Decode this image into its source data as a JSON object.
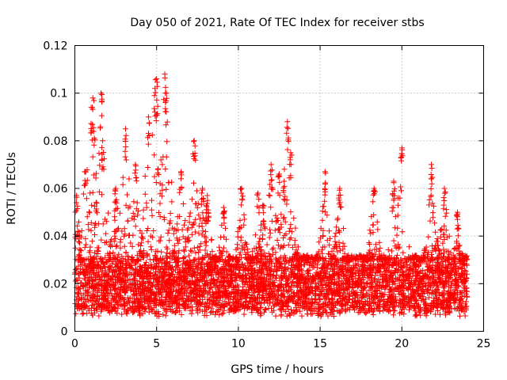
{
  "chart_data": {
    "type": "scatter",
    "title": "Day 050 of 2021, Rate Of TEC Index for receiver stbs",
    "xlabel": "GPS time / hours",
    "ylabel": "ROTI / TECUs",
    "xlim": [
      0,
      25
    ],
    "ylim": [
      0,
      0.12
    ],
    "x_ticks": [
      0,
      5,
      10,
      15,
      20,
      25
    ],
    "x_tick_labels": [
      "0",
      "5",
      "10",
      "15",
      "20",
      "25"
    ],
    "y_ticks": [
      0,
      0.02,
      0.04,
      0.06,
      0.08,
      0.1,
      0.12
    ],
    "y_tick_labels": [
      "0",
      "0.02",
      "0.04",
      "0.06",
      "0.08",
      "0.1",
      "0.12"
    ],
    "grid": true,
    "marker": "+",
    "color": "#ff0000",
    "series": [
      {
        "name": "ROTI",
        "x_range": [
          0,
          24
        ],
        "baseline_band": [
          0.008,
          0.03
        ],
        "notable_peaks": [
          {
            "x": 0.1,
            "y": 0.057
          },
          {
            "x": 0.6,
            "y": 0.067
          },
          {
            "x": 1.0,
            "y": 0.094
          },
          {
            "x": 1.1,
            "y": 0.098
          },
          {
            "x": 1.6,
            "y": 0.1
          },
          {
            "x": 1.7,
            "y": 0.08
          },
          {
            "x": 2.5,
            "y": 0.06
          },
          {
            "x": 3.1,
            "y": 0.085
          },
          {
            "x": 3.7,
            "y": 0.07
          },
          {
            "x": 4.5,
            "y": 0.09
          },
          {
            "x": 4.9,
            "y": 0.102
          },
          {
            "x": 5.0,
            "y": 0.106
          },
          {
            "x": 5.5,
            "y": 0.108
          },
          {
            "x": 5.6,
            "y": 0.1
          },
          {
            "x": 6.5,
            "y": 0.067
          },
          {
            "x": 7.3,
            "y": 0.08
          },
          {
            "x": 7.8,
            "y": 0.06
          },
          {
            "x": 8.1,
            "y": 0.057
          },
          {
            "x": 9.1,
            "y": 0.052
          },
          {
            "x": 10.2,
            "y": 0.06
          },
          {
            "x": 11.2,
            "y": 0.058
          },
          {
            "x": 11.5,
            "y": 0.053
          },
          {
            "x": 12.0,
            "y": 0.07
          },
          {
            "x": 12.5,
            "y": 0.066
          },
          {
            "x": 12.8,
            "y": 0.063
          },
          {
            "x": 13.0,
            "y": 0.088
          },
          {
            "x": 13.2,
            "y": 0.075
          },
          {
            "x": 15.3,
            "y": 0.067
          },
          {
            "x": 16.2,
            "y": 0.06
          },
          {
            "x": 18.3,
            "y": 0.06
          },
          {
            "x": 19.5,
            "y": 0.063
          },
          {
            "x": 20.0,
            "y": 0.077
          },
          {
            "x": 21.8,
            "y": 0.07
          },
          {
            "x": 22.6,
            "y": 0.06
          },
          {
            "x": 23.4,
            "y": 0.05
          }
        ]
      }
    ]
  }
}
